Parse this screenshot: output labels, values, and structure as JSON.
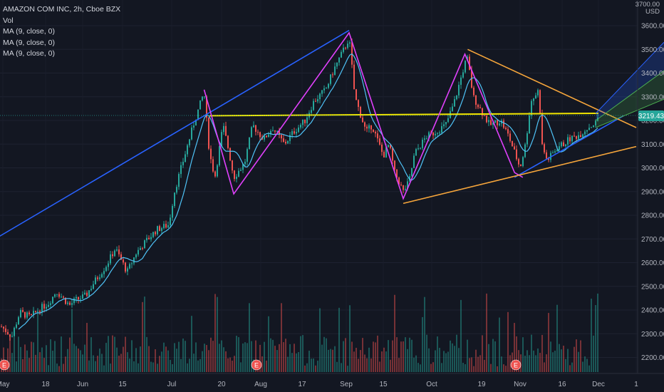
{
  "legend": {
    "title": "AMAZON COM INC, 2h, Cboe BZX",
    "vol": "Vol",
    "ma1": "MA (9, close, 0)",
    "ma2": "MA (9, close, 0)",
    "ma3": "MA (9, close, 0)"
  },
  "price_axis": {
    "unit_top": "3700.00",
    "unit": "USD",
    "current_price_label": "3219.43",
    "current_price_color": "#26a69a"
  },
  "events": [
    {
      "label": "E",
      "at": "May"
    },
    {
      "label": "E",
      "at": "Jul 29"
    },
    {
      "label": "E",
      "at": "Oct 28"
    }
  ],
  "chart_data": {
    "type": "candlestick",
    "title": "AMAZON COM INC, 2h, Cboe BZX",
    "ylabel": "USD",
    "ylim": [
      2170,
      3700
    ],
    "y_ticks": [
      2200,
      2300,
      2400,
      2500,
      2600,
      2700,
      2800,
      2900,
      3000,
      3100,
      3200,
      3300,
      3400,
      3500,
      3600
    ],
    "x_ticks": [
      "May",
      "18",
      "Jun",
      "15",
      "Jul",
      "20",
      "Aug",
      "17",
      "Sep",
      "15",
      "Oct",
      "19",
      "Nov",
      "16",
      "Dec",
      "1"
    ],
    "last_price": 3219.43,
    "close_path": [
      [
        "May 1",
        2330
      ],
      [
        "May 5",
        2290
      ],
      [
        "May 8",
        2390
      ],
      [
        "May 12",
        2370
      ],
      [
        "May 15",
        2400
      ],
      [
        "May 19",
        2430
      ],
      [
        "May 22",
        2480
      ],
      [
        "May 27",
        2420
      ],
      [
        "May 29",
        2440
      ],
      [
        "Jun 2",
        2460
      ],
      [
        "Jun 5",
        2520
      ],
      [
        "Jun 9",
        2590
      ],
      [
        "Jun 12",
        2660
      ],
      [
        "Jun 16",
        2560
      ],
      [
        "Jun 19",
        2640
      ],
      [
        "Jun 23",
        2700
      ],
      [
        "Jun 26",
        2740
      ],
      [
        "Jun 30",
        2760
      ],
      [
        "Jul 2",
        2900
      ],
      [
        "Jul 6",
        3060
      ],
      [
        "Jul 9",
        3180
      ],
      [
        "Jul 13",
        3320
      ],
      [
        "Jul 15",
        3060
      ],
      [
        "Jul 17",
        2960
      ],
      [
        "Jul 20",
        3180
      ],
      [
        "Jul 22",
        3080
      ],
      [
        "Jul 24",
        2960
      ],
      [
        "Jul 28",
        3020
      ],
      [
        "Jul 31",
        3180
      ],
      [
        "Aug 4",
        3120
      ],
      [
        "Aug 7",
        3170
      ],
      [
        "Aug 11",
        3100
      ],
      [
        "Aug 14",
        3150
      ],
      [
        "Aug 18",
        3200
      ],
      [
        "Aug 21",
        3280
      ],
      [
        "Aug 25",
        3330
      ],
      [
        "Aug 28",
        3420
      ],
      [
        "Sep 1",
        3520
      ],
      [
        "Sep 2",
        3550
      ],
      [
        "Sep 4",
        3300
      ],
      [
        "Sep 8",
        3150
      ],
      [
        "Sep 10",
        3180
      ],
      [
        "Sep 14",
        3050
      ],
      [
        "Sep 16",
        3100
      ],
      [
        "Sep 18",
        2980
      ],
      [
        "Sep 21",
        2900
      ],
      [
        "Sep 23",
        2940
      ],
      [
        "Sep 25",
        3060
      ],
      [
        "Sep 29",
        3130
      ],
      [
        "Oct 2",
        3150
      ],
      [
        "Oct 6",
        3180
      ],
      [
        "Oct 9",
        3270
      ],
      [
        "Oct 13",
        3440
      ],
      [
        "Oct 14",
        3460
      ],
      [
        "Oct 16",
        3300
      ],
      [
        "Oct 20",
        3220
      ],
      [
        "Oct 22",
        3180
      ],
      [
        "Oct 26",
        3200
      ],
      [
        "Oct 29",
        3130
      ],
      [
        "Nov 2",
        3000
      ],
      [
        "Nov 4",
        3100
      ],
      [
        "Nov 6",
        3280
      ],
      [
        "Nov 9",
        3330
      ],
      [
        "Nov 10",
        3100
      ],
      [
        "Nov 12",
        3030
      ],
      [
        "Nov 16",
        3090
      ],
      [
        "Nov 18",
        3100
      ],
      [
        "Nov 20",
        3120
      ],
      [
        "Nov 24",
        3140
      ],
      [
        "Nov 27",
        3170
      ],
      [
        "Nov 30",
        3190
      ],
      [
        "Dec 1",
        3219.43
      ]
    ],
    "annotations": [
      {
        "type": "trendline",
        "color": "#2962ff",
        "points": [
          [
            "Apr 27",
            2690
          ],
          [
            "Sep 2",
            3580
          ]
        ]
      },
      {
        "type": "trendline",
        "color": "#2962ff",
        "points": [
          [
            "Oct 31",
            2960
          ],
          [
            "Dec 3",
            3220
          ]
        ]
      },
      {
        "type": "horizontal_segment",
        "color": "#f2e600",
        "points": [
          [
            "Jul 15",
            3220
          ],
          [
            "Dec 1",
            3230
          ]
        ]
      },
      {
        "type": "zigzag",
        "color": "#e040fb",
        "points": [
          [
            "Jul 13",
            3330
          ],
          [
            "Jul 24",
            2890
          ],
          [
            "Sep 2",
            3570
          ],
          [
            "Sep 21",
            2870
          ],
          [
            "Oct 13",
            3480
          ],
          [
            "Oct 31",
            2980
          ],
          [
            "Nov 3",
            2960
          ]
        ]
      },
      {
        "type": "triangle_upper",
        "color": "#f7a63b",
        "points": [
          [
            "Oct 14",
            3500
          ],
          [
            "Dec 4",
            3170
          ]
        ]
      },
      {
        "type": "triangle_lower",
        "color": "#f7a63b",
        "points": [
          [
            "Sep 21",
            2850
          ],
          [
            "Dec 4",
            3090
          ]
        ]
      },
      {
        "type": "regression_channel",
        "colors": [
          "#2962ff",
          "#4caf50"
        ],
        "points": [
          [
            "Nov 30",
            3210
          ],
          [
            "Dec 4",
            3520
          ]
        ]
      }
    ]
  }
}
